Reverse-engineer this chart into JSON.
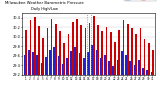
{
  "title": "Milwaukee Weather Barometric Pressure",
  "subtitle": "Daily High/Low",
  "days": [
    1,
    2,
    3,
    4,
    5,
    6,
    7,
    8,
    9,
    10,
    11,
    12,
    13,
    14,
    15,
    16,
    17,
    18,
    19,
    20,
    21,
    22,
    23,
    24,
    25,
    26,
    27,
    28,
    29,
    30,
    31
  ],
  "highs": [
    30.15,
    30.35,
    30.42,
    30.22,
    29.98,
    30.18,
    30.38,
    30.28,
    30.12,
    29.88,
    30.05,
    30.32,
    30.38,
    30.25,
    30.18,
    30.3,
    30.44,
    30.25,
    30.12,
    30.2,
    30.1,
    29.9,
    30.15,
    30.35,
    30.28,
    30.18,
    30.05,
    30.18,
    29.95,
    29.88,
    29.72
  ],
  "lows": [
    29.62,
    29.72,
    29.68,
    29.62,
    29.45,
    29.58,
    29.72,
    29.78,
    29.6,
    29.42,
    29.55,
    29.7,
    29.78,
    29.65,
    29.55,
    29.68,
    29.82,
    29.72,
    29.55,
    29.62,
    29.5,
    29.38,
    29.52,
    29.7,
    29.62,
    29.5,
    29.4,
    29.52,
    29.35,
    29.3,
    29.25
  ],
  "high_color": "#cc0000",
  "low_color": "#2222cc",
  "ylim_low": 29.2,
  "ylim_high": 30.5,
  "yticks": [
    29.2,
    29.4,
    29.6,
    29.8,
    30.0,
    30.2,
    30.4
  ],
  "ytick_labels": [
    "29.2",
    "29.4",
    "29.6",
    "29.8",
    "30.0",
    "30.2",
    "30.4"
  ],
  "bg_color": "#ffffff",
  "grid_color": "#cccccc",
  "legend_high": "High",
  "legend_low": "Low",
  "vline_days": [
    15,
    16
  ],
  "bar_width": 0.4
}
